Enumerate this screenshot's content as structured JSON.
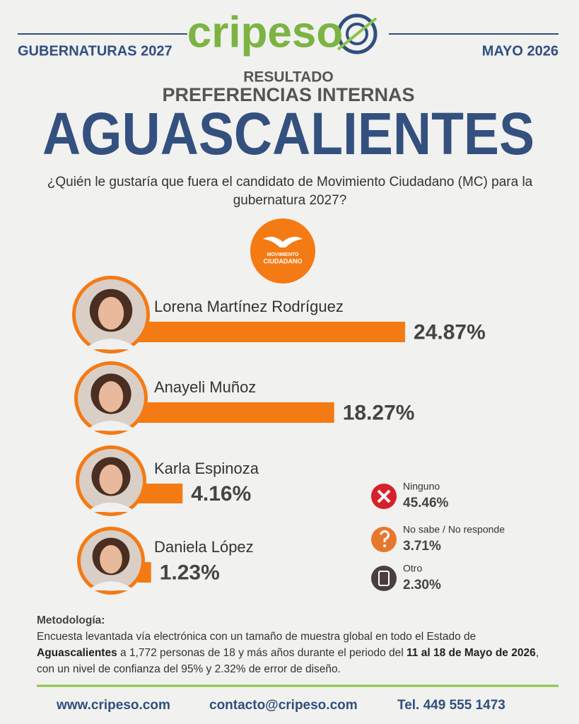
{
  "header": {
    "left": "GUBERNATURAS 2027",
    "logo": "cripeso",
    "right": "MAYO 2026"
  },
  "chart_data": {
    "type": "bar",
    "kicker": "RESULTADO",
    "subtitle": "PREFERENCIAS INTERNAS",
    "title": "AGUASCALIENTES",
    "question": "¿Quién le gustaría que fuera el candidato de Movimiento Ciudadano (MC) para la gubernatura 2027?",
    "party": [
      "MOVIMIENTO",
      "CIUDADANO"
    ],
    "categories": [
      "Lorena Martínez Rodríguez",
      "Anayeli Muñoz",
      "Karla Espinoza",
      "Daniela López"
    ],
    "values": [
      24.87,
      18.27,
      4.16,
      1.23
    ],
    "value_labels": [
      "24.87%",
      "18.27%",
      "4.16%",
      "1.23%"
    ],
    "color": "#f47a14",
    "others": {
      "categories": [
        "Ninguno",
        "No sabe / No responde",
        "Otro"
      ],
      "values": [
        45.46,
        3.71,
        2.3
      ],
      "value_labels": [
        "45.46%",
        "3.71%",
        "2.30%"
      ],
      "colors": [
        "#d6202a",
        "#e8772e",
        "#4a3f3f"
      ]
    }
  },
  "methodology": {
    "title": "Metodología:",
    "segments": [
      "Encuesta levantada vía electrónica con un tamaño de muestra global en todo el Estado de ",
      "Aguascalientes",
      " a 1,772 personas de 18 y más años durante el periodo del ",
      "11 al 18 de Mayo de 2026",
      ", con un nivel de confianza del 95% y 2.32% de error de diseño."
    ]
  },
  "footer": {
    "web": "www.cripeso.com",
    "email": "contacto@cripeso.com",
    "phone": "Tel. 449 555 1473"
  }
}
